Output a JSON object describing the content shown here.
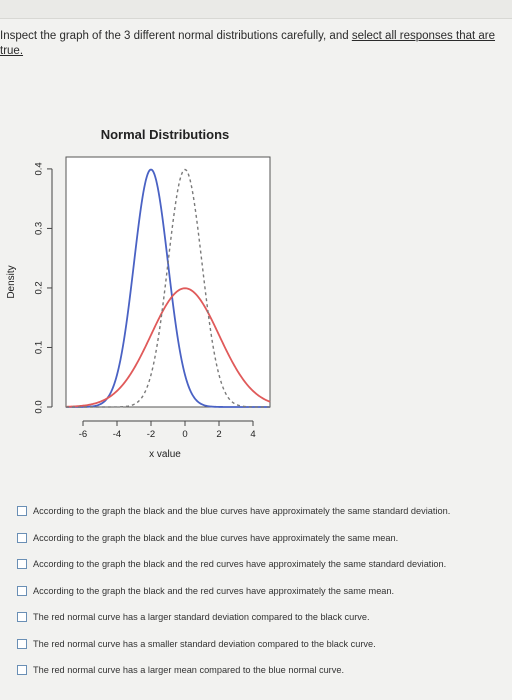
{
  "prompt": {
    "line1_start": "Inspect the graph of the 3 different normal distributions carefully, and ",
    "line1_link": "select all responses that are",
    "line2": "true."
  },
  "chart_data": {
    "type": "line",
    "title": "Normal Distributions",
    "xlabel": "x value",
    "ylabel": "Density",
    "xlim": [
      -7,
      5
    ],
    "ylim": [
      0,
      0.42
    ],
    "x_ticks": [
      "-6",
      "-4",
      "-2",
      "0",
      "2",
      "4"
    ],
    "y_ticks": [
      "0.0",
      "0.1",
      "0.2",
      "0.3",
      "0.4"
    ],
    "grid": false,
    "series": [
      {
        "color": "#4a62c4",
        "style": "solid",
        "mean": -2,
        "sd": 1
      },
      {
        "color": "#e05a5a",
        "style": "solid",
        "mean": 0,
        "sd": 2
      },
      {
        "color": "#7a7a7a",
        "style": "dashed",
        "mean": 0,
        "sd": 1
      }
    ]
  },
  "options": [
    "According to the graph the black and the blue curves have approximately the same standard deviation.",
    "According to the graph the black and the blue curves have approximately the same mean.",
    "According to the graph the black and the red curves have approximately the same standard deviation.",
    "According to the graph the black and the red curves have approximately the same mean.",
    "The red normal curve has a larger standard deviation compared to the black curve.",
    "The red normal curve has a smaller standard deviation compared to the black curve.",
    "The red normal curve has a larger mean compared to the blue normal curve."
  ]
}
